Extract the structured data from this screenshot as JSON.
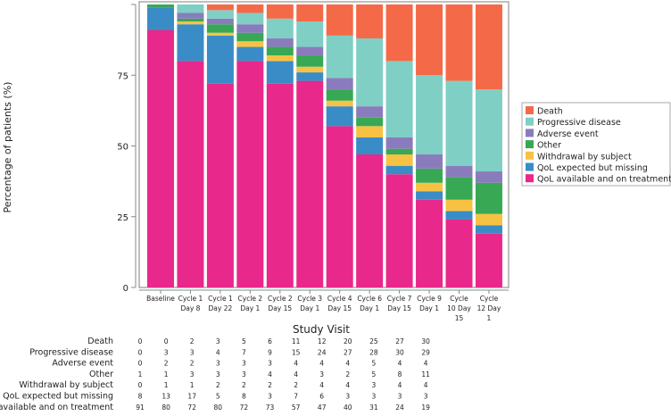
{
  "chart_data": {
    "type": "bar",
    "stacked": true,
    "percent": true,
    "title": "",
    "xlabel": "Study Visit",
    "ylabel": "Percentage of patients (%)",
    "ylim": [
      0,
      100
    ],
    "yticks": [
      "0",
      "25",
      "50",
      "75"
    ],
    "legend_position": "right",
    "categories": [
      [
        "Baseline"
      ],
      [
        "Cycle 1",
        "Day 8"
      ],
      [
        "Cycle 1",
        "Day 22"
      ],
      [
        "Cycle 2",
        "Day 1"
      ],
      [
        "Cycle 2",
        "Day 15"
      ],
      [
        "Cycle 3",
        "Day 1"
      ],
      [
        "Cycle 4",
        "Day 15"
      ],
      [
        "Cycle 6",
        "Day 1"
      ],
      [
        "Cycle 7",
        "Day 15"
      ],
      [
        "Cycle 9",
        "Day 1"
      ],
      [
        "Cycle",
        "10 Day",
        "15"
      ],
      [
        "Cycle",
        "12 Day",
        "1"
      ]
    ],
    "series": [
      {
        "name": "QoL available and on treatment",
        "color": "#e8288a",
        "values": [
          91,
          80,
          72,
          80,
          72,
          73,
          57,
          47,
          40,
          31,
          24,
          19
        ]
      },
      {
        "name": "QoL expected but missing",
        "color": "#3a8cc6",
        "values": [
          8,
          13,
          17,
          5,
          8,
          3,
          7,
          6,
          3,
          3,
          3,
          3
        ]
      },
      {
        "name": "Withdrawal by subject",
        "color": "#f7c244",
        "values": [
          0,
          1,
          1,
          2,
          2,
          2,
          2,
          4,
          4,
          3,
          4,
          4
        ]
      },
      {
        "name": "Other",
        "color": "#38a854",
        "values": [
          1,
          1,
          3,
          3,
          3,
          4,
          4,
          3,
          2,
          5,
          8,
          11
        ]
      },
      {
        "name": "Adverse event",
        "color": "#8a7cbc",
        "values": [
          0,
          2,
          2,
          3,
          3,
          3,
          4,
          4,
          4,
          5,
          4,
          4
        ]
      },
      {
        "name": "Progressive disease",
        "color": "#7fcfc5",
        "values": [
          0,
          3,
          3,
          4,
          7,
          9,
          15,
          24,
          27,
          28,
          30,
          29
        ]
      },
      {
        "name": "Death",
        "color": "#f46a48",
        "values": [
          0,
          0,
          2,
          3,
          5,
          6,
          11,
          12,
          20,
          25,
          27,
          30
        ]
      }
    ],
    "legend_order": [
      "Death",
      "Progressive disease",
      "Adverse event",
      "Other",
      "Withdrawal by subject",
      "QoL expected but missing",
      "QoL available and on treatment"
    ],
    "table_order": [
      "Death",
      "Progressive disease",
      "Adverse event",
      "Other",
      "Withdrawal by subject",
      "QoL expected but missing",
      "QoL available and on treatment"
    ]
  }
}
